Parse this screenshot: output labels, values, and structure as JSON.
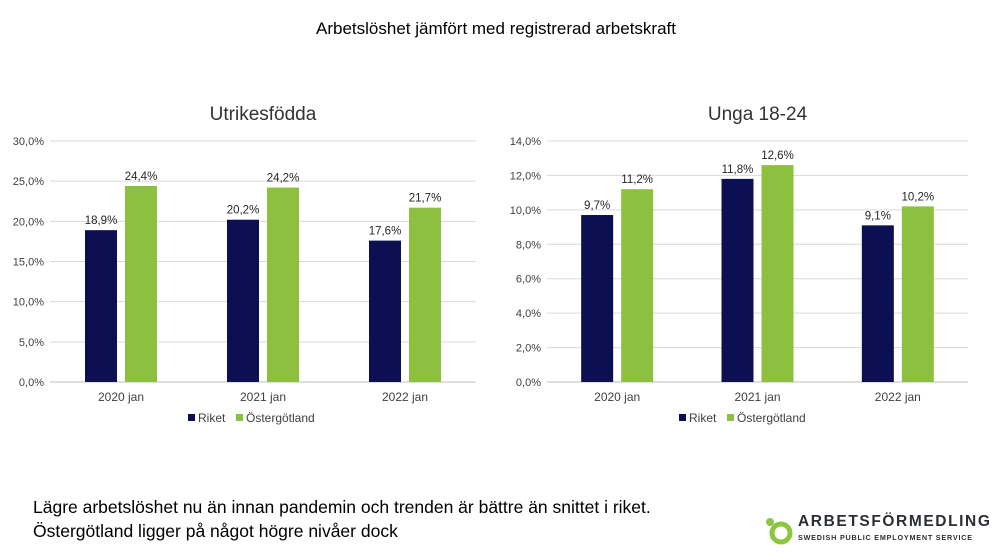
{
  "slide": {
    "title": "Arbetslöshet jämfört med registrerad arbetskraft",
    "footer": "Lägre arbetslöshet nu än innan pandemin och trenden är bättre än snittet i riket. Östergötland ligger på något högre nivåer dock"
  },
  "logo": {
    "name": "ARBETSFÖRMEDLINGEN",
    "subtitle": "SWEDISH PUBLIC EMPLOYMENT SERVICE",
    "color": "#8dc63f"
  },
  "colors": {
    "riket": "#0c1053",
    "ostergotland": "#8dc03e",
    "grid": "#d9d9d9"
  },
  "chart_data": [
    {
      "type": "bar",
      "title": "Utrikesfödda",
      "categories": [
        "2020 jan",
        "2021 jan",
        "2022 jan"
      ],
      "series": [
        {
          "name": "Riket",
          "values": [
            18.9,
            20.2,
            17.6
          ],
          "labels": [
            "18,9%",
            "20,2%",
            "17,6%"
          ]
        },
        {
          "name": "Östergötland",
          "values": [
            24.4,
            24.2,
            21.7
          ],
          "labels": [
            "24,4%",
            "24,2%",
            "21,7%"
          ]
        }
      ],
      "ylim": [
        0,
        30
      ],
      "yticks": [
        "0,0%",
        "5,0%",
        "10,0%",
        "15,0%",
        "20,0%",
        "25,0%",
        "30,0%"
      ],
      "grid": true,
      "legend": "bottom"
    },
    {
      "type": "bar",
      "title": "Unga 18-24",
      "categories": [
        "2020 jan",
        "2021 jan",
        "2022 jan"
      ],
      "series": [
        {
          "name": "Riket",
          "values": [
            9.7,
            11.8,
            9.1
          ],
          "labels": [
            "9,7%",
            "11,8%",
            "9,1%"
          ]
        },
        {
          "name": "Östergötland",
          "values": [
            11.2,
            12.6,
            10.2
          ],
          "labels": [
            "11,2%",
            "12,6%",
            "10,2%"
          ]
        }
      ],
      "ylim": [
        0,
        14
      ],
      "yticks": [
        "0,0%",
        "2,0%",
        "4,0%",
        "6,0%",
        "8,0%",
        "10,0%",
        "12,0%",
        "14,0%"
      ],
      "grid": true,
      "legend": "bottom"
    }
  ]
}
